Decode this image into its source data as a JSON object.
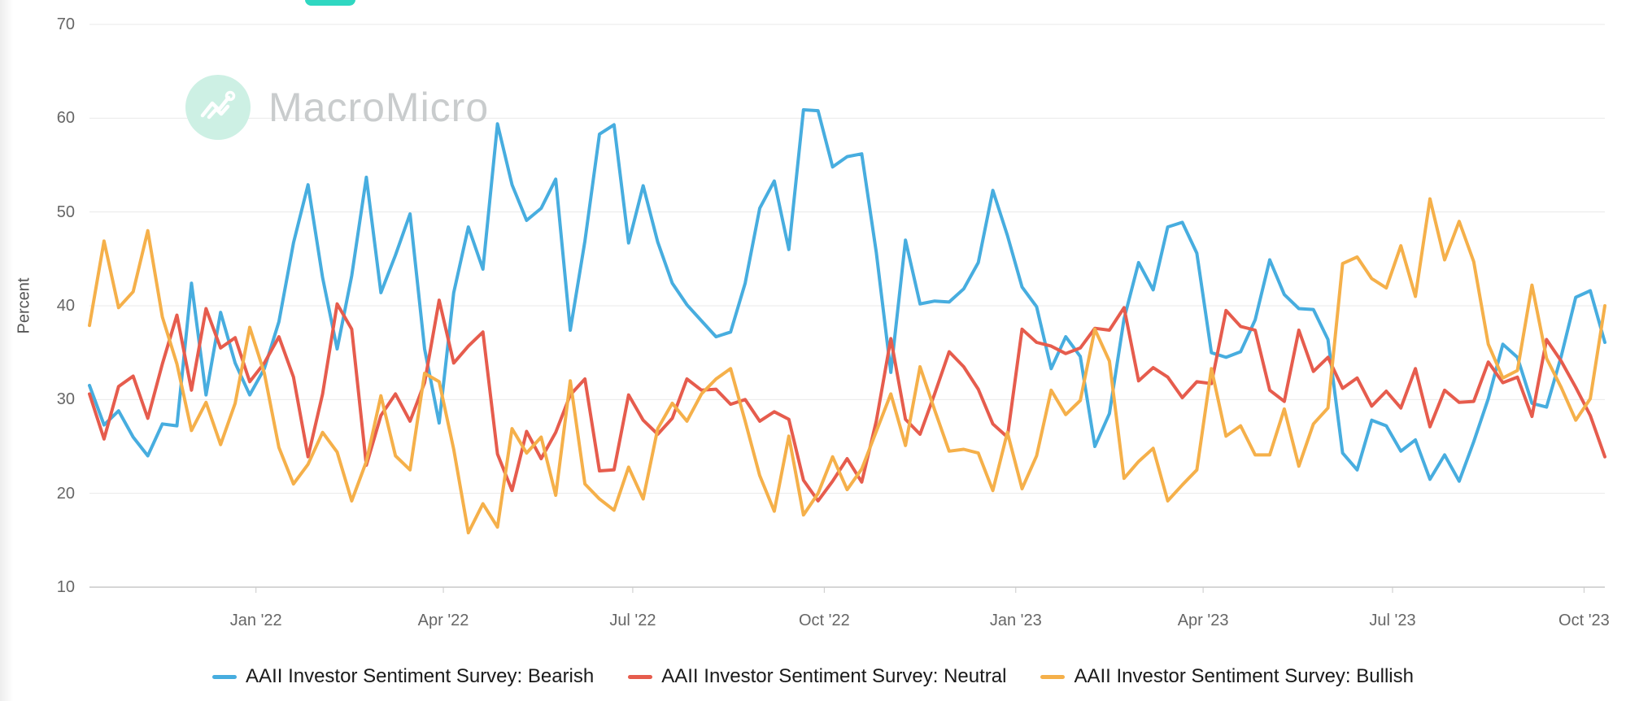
{
  "watermark": {
    "brand": "MacroMicro"
  },
  "top_fragment": {
    "color": "#2FD7C1"
  },
  "yaxis": {
    "title": "Percent",
    "ticks": [
      "70",
      "60",
      "50",
      "40",
      "30",
      "20",
      "10"
    ],
    "values": [
      70,
      60,
      50,
      40,
      30,
      20,
      10
    ]
  },
  "xaxis": {
    "ticks": [
      {
        "label": "Jan '22",
        "date": "2022-01-01"
      },
      {
        "label": "Apr '22",
        "date": "2022-04-01"
      },
      {
        "label": "Jul '22",
        "date": "2022-07-01"
      },
      {
        "label": "Oct '22",
        "date": "2022-10-01"
      },
      {
        "label": "Jan '23",
        "date": "2023-01-01"
      },
      {
        "label": "Apr '23",
        "date": "2023-04-01"
      },
      {
        "label": "Jul '23",
        "date": "2023-07-01"
      },
      {
        "label": "Oct '23",
        "date": "2023-10-01"
      }
    ]
  },
  "chart_data": {
    "type": "line",
    "title": "",
    "xlabel": "",
    "ylabel": "Percent",
    "ylim": [
      10,
      70
    ],
    "grid": true,
    "legend_position": "bottom",
    "x_start": "2021-10-13",
    "x_end": "2023-10-11",
    "interval": "weekly",
    "series": [
      {
        "name": "AAII Investor Sentiment Survey: Bearish",
        "color": "#47ADDF",
        "values": [
          31.5,
          27.3,
          28.8,
          26.0,
          24.0,
          27.4,
          27.2,
          42.4,
          30.5,
          39.3,
          33.9,
          30.5,
          33.3,
          38.3,
          46.7,
          52.9,
          43.0,
          35.4,
          43.2,
          53.7,
          41.4,
          45.4,
          49.8,
          35.4,
          27.5,
          41.4,
          48.4,
          43.9,
          59.4,
          52.9,
          49.1,
          50.4,
          53.5,
          37.4,
          46.9,
          58.3,
          59.3,
          46.7,
          52.8,
          46.8,
          42.4,
          40.1,
          38.4,
          36.7,
          37.2,
          42.4,
          50.4,
          53.3,
          46.0,
          60.9,
          60.8,
          54.8,
          55.9,
          56.2,
          45.7,
          32.9,
          47.0,
          40.2,
          40.5,
          40.4,
          41.8,
          44.6,
          52.3,
          47.5,
          42.0,
          39.9,
          33.3,
          36.7,
          34.6,
          25.0,
          28.5,
          38.6,
          44.6,
          41.7,
          48.4,
          48.9,
          45.6,
          35.0,
          34.5,
          35.1,
          38.5,
          44.9,
          41.2,
          39.7,
          39.6,
          36.4,
          24.3,
          22.5,
          27.8,
          27.2,
          24.5,
          25.7,
          21.5,
          24.1,
          21.3,
          25.5,
          30.1,
          35.9,
          34.5,
          29.6,
          29.2,
          34.6,
          40.9,
          41.6,
          36.1
        ]
      },
      {
        "name": "AAII Investor Sentiment Survey: Neutral",
        "color": "#E65C4D",
        "values": [
          30.6,
          25.8,
          31.4,
          32.5,
          28.0,
          33.8,
          39.0,
          31.0,
          39.7,
          35.5,
          36.6,
          31.9,
          33.9,
          36.7,
          32.4,
          23.9,
          30.6,
          40.2,
          37.5,
          23.0,
          28.3,
          30.6,
          27.7,
          31.8,
          40.6,
          33.9,
          35.7,
          37.2,
          24.2,
          20.3,
          26.6,
          23.7,
          26.5,
          30.5,
          32.2,
          22.4,
          22.5,
          30.5,
          27.8,
          26.3,
          28.0,
          32.2,
          31.0,
          31.1,
          29.5,
          30.0,
          27.7,
          28.7,
          27.9,
          21.4,
          19.2,
          21.3,
          23.7,
          21.2,
          27.7,
          36.5,
          27.9,
          26.3,
          30.6,
          35.1,
          33.5,
          31.1,
          27.4,
          26.0,
          37.5,
          36.1,
          35.7,
          34.9,
          35.5,
          37.6,
          37.4,
          39.8,
          32.0,
          33.4,
          32.4,
          30.2,
          31.9,
          31.7,
          39.5,
          37.8,
          37.4,
          31.0,
          29.8,
          37.4,
          33.0,
          34.5,
          31.2,
          32.3,
          29.3,
          30.9,
          29.1,
          33.3,
          27.1,
          31.0,
          29.7,
          29.8,
          34.0,
          31.8,
          32.4,
          28.2,
          36.4,
          34.1,
          31.3,
          28.3,
          23.9
        ]
      },
      {
        "name": "AAII Investor Sentiment Survey: Bullish",
        "color": "#F5B04A",
        "values": [
          37.9,
          46.9,
          39.8,
          41.5,
          48.0,
          38.8,
          33.8,
          26.7,
          29.7,
          25.2,
          29.6,
          37.7,
          32.8,
          24.9,
          21.0,
          23.1,
          26.5,
          24.4,
          19.2,
          23.4,
          30.4,
          24.0,
          22.5,
          32.8,
          31.9,
          24.7,
          15.8,
          18.9,
          16.4,
          26.9,
          24.3,
          26.0,
          19.8,
          32.0,
          21.0,
          19.4,
          18.2,
          22.8,
          19.4,
          26.9,
          29.6,
          27.7,
          30.6,
          32.2,
          33.3,
          27.7,
          21.9,
          18.1,
          26.1,
          17.7,
          20.0,
          23.9,
          20.4,
          22.6,
          26.6,
          30.6,
          25.1,
          33.5,
          28.9,
          24.5,
          24.7,
          24.3,
          20.3,
          26.5,
          20.5,
          24.0,
          31.0,
          28.4,
          29.9,
          37.5,
          34.1,
          21.6,
          23.4,
          24.8,
          19.2,
          20.9,
          22.5,
          33.3,
          26.1,
          27.2,
          24.1,
          24.1,
          29.0,
          22.9,
          27.4,
          29.1,
          44.5,
          45.2,
          42.9,
          41.9,
          46.4,
          41.0,
          51.4,
          44.9,
          49.0,
          44.7,
          35.9,
          32.3,
          33.1,
          42.2,
          34.4,
          31.3,
          27.8,
          30.1,
          40.0
        ]
      }
    ]
  }
}
